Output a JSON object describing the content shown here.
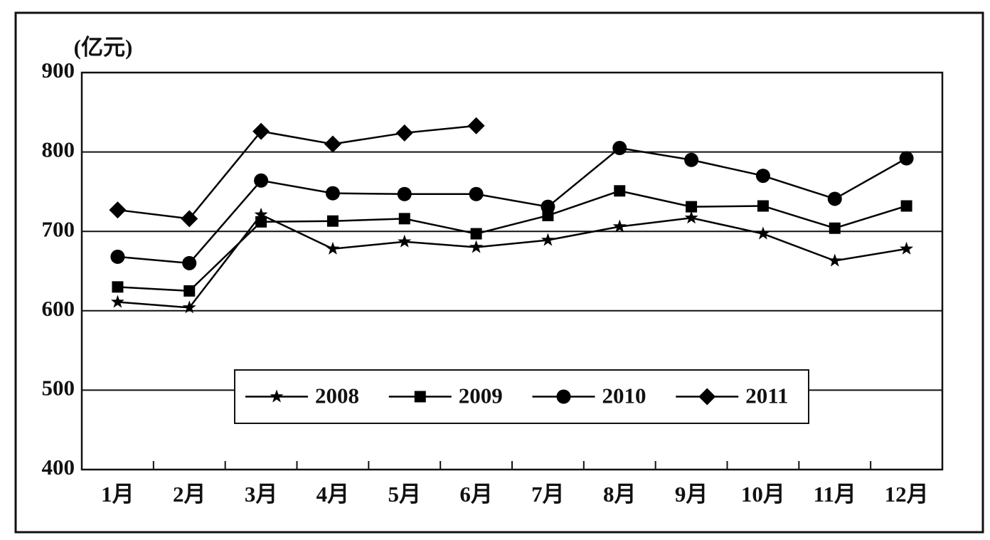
{
  "chart_data": {
    "type": "line",
    "y_label": "(亿元)",
    "categories": [
      "1月",
      "2月",
      "3月",
      "4月",
      "5月",
      "6月",
      "7月",
      "8月",
      "9月",
      "10月",
      "11月",
      "12月"
    ],
    "series": [
      {
        "name": "2008",
        "color": "#000000",
        "marker": "star",
        "values": [
          611,
          604,
          721,
          678,
          687,
          680,
          689,
          706,
          717,
          697,
          663,
          678
        ]
      },
      {
        "name": "2009",
        "color": "#000000",
        "marker": "square",
        "values": [
          630,
          625,
          712,
          713,
          716,
          697,
          720,
          751,
          731,
          732,
          704,
          732
        ]
      },
      {
        "name": "2010",
        "color": "#000000",
        "marker": "circle",
        "values": [
          668,
          660,
          764,
          748,
          747,
          747,
          731,
          805,
          790,
          770,
          741,
          792
        ]
      },
      {
        "name": "2011",
        "color": "#000000",
        "marker": "diamond",
        "values": [
          727,
          716,
          826,
          810,
          824,
          833,
          null,
          null,
          null,
          null,
          null,
          null
        ]
      }
    ],
    "ylim": [
      400,
      900
    ],
    "yticks": [
      400,
      500,
      600,
      700,
      800,
      900
    ],
    "grid": true,
    "legend": "bottom"
  }
}
